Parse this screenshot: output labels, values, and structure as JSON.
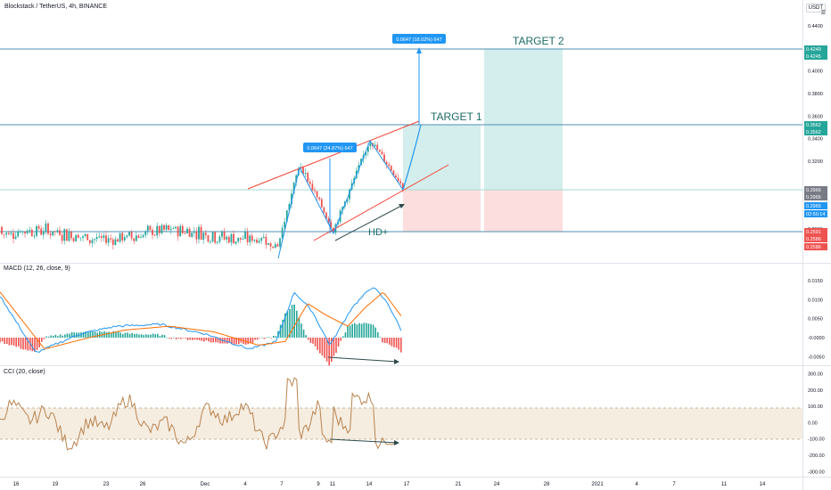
{
  "header": {
    "title": "Blockstack / TetherUS, 4h, BINANCE",
    "unit_label": "USDT",
    "unit_label_2": "☰"
  },
  "indicators": {
    "macd_label": "MACD (12, 26, close, 9)",
    "cci_label": "CCI (20, close)"
  },
  "chart_data": [
    {
      "type": "candlestick",
      "title": "Blockstack / TetherUS, 4h, BINANCE",
      "y_ticks": [
        "0.4400",
        "0.4000",
        "0.3800",
        "0.3600",
        "0.3400",
        "0.3200",
        "0.2600"
      ],
      "y_tick_values": [
        0.44,
        0.4,
        0.38,
        0.36,
        0.34,
        0.32,
        0.26
      ],
      "ylim": [
        0.238,
        0.455
      ],
      "x_ticks": [
        "16",
        "19",
        "23",
        "26",
        "Dec",
        "4",
        "7",
        "9",
        "11",
        "14",
        "17",
        "21",
        "24",
        "28",
        "2021",
        "4",
        "7",
        "11",
        "14"
      ],
      "price_labels": [
        {
          "text": "0.4249",
          "color": "#26a69a"
        },
        {
          "text": "0.4245",
          "color": "#26a69a"
        },
        {
          "text": "0.3562",
          "color": "#26a69a"
        },
        {
          "text": "0.3562",
          "color": "#26a69a"
        },
        {
          "text": "0.2966",
          "color": "#787b86"
        },
        {
          "text": "0.2965",
          "color": "#787b86"
        },
        {
          "text": "0.2965",
          "color": "#2196f3"
        },
        {
          "text": "02:50:14",
          "color": "#2196f3"
        },
        {
          "text": "0.2591",
          "color": "#ef5350"
        },
        {
          "text": "0.2586",
          "color": "#ef5350"
        },
        {
          "text": "0.2586",
          "color": "#ef5350"
        }
      ],
      "price_label_values": [
        0.4249,
        0.4245,
        0.3562,
        0.3562,
        0.2966,
        0.2965,
        0.2965,
        0.2965,
        0.2591,
        0.2586,
        0.2586
      ],
      "horizontal_levels": [
        0.4249,
        0.3562,
        0.2965,
        0.2591
      ],
      "annotations": {
        "target1": "TARGET 1",
        "target2": "TARGET 2",
        "hd": "HD+",
        "measure_small": "0.0647 (24.87%) 647",
        "measure_large": "0.0647 (18.02%) 647"
      },
      "pattern_points": [
        {
          "date": "Dec 7",
          "price": 0.246
        },
        {
          "date": "Dec 8",
          "price": 0.318
        },
        {
          "date": "Dec 10",
          "price": 0.259
        },
        {
          "date": "Dec 13",
          "price": 0.339
        },
        {
          "date": "Dec 14",
          "price": 0.298
        }
      ]
    },
    {
      "type": "line",
      "title": "MACD (12, 26, close, 9)",
      "y_ticks": [
        "0.0150",
        "0.0100",
        "0.0050",
        "-0.0000",
        "-0.0050"
      ],
      "y_tick_values": [
        0.015,
        0.01,
        0.005,
        0.0,
        -0.005
      ],
      "ylim": [
        -0.0068,
        0.0185
      ]
    },
    {
      "type": "line",
      "title": "CCI (20, close)",
      "y_ticks": [
        "300.00",
        "200.00",
        "100.00",
        "0.00",
        "-100.00",
        "-200.00",
        "-300.00"
      ],
      "y_tick_values": [
        300,
        200,
        100,
        0,
        -100,
        -200,
        -300
      ],
      "ylim": [
        -320,
        330
      ],
      "band": [
        -100,
        100
      ]
    }
  ],
  "colors": {
    "up": "#26a69a",
    "down": "#ef5350",
    "level_line": "#4f8fb3",
    "channel": "#f44336",
    "pattern": "#2196f3",
    "macd": "#2196f3",
    "signal": "#ff6d00",
    "cci": "#b8834f",
    "band": "#f6ede1",
    "target_fill": "#d3eeec",
    "stop_fill": "#fcdede",
    "arrow": "#2e4a4a"
  }
}
